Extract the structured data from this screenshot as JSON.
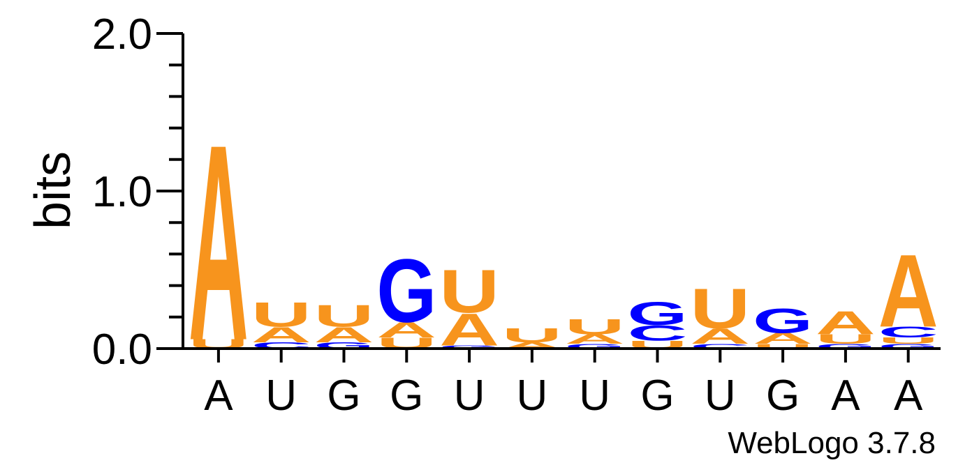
{
  "chart_data": {
    "type": "sequence-logo",
    "ylabel": "bits",
    "ylim": [
      0,
      2.0
    ],
    "y_major_ticks": [
      {
        "value": 0.0,
        "label": "0.0"
      },
      {
        "value": 1.0,
        "label": "1.0"
      },
      {
        "value": 2.0,
        "label": "2.0"
      }
    ],
    "y_minor_step": 0.2,
    "x_tick_labels": [
      "A",
      "U",
      "G",
      "G",
      "U",
      "U",
      "U",
      "G",
      "U",
      "G",
      "A",
      "A"
    ],
    "colors": {
      "A": "#F7941D",
      "U": "#F7941D",
      "G": "#0000FF",
      "C": "#0000FF"
    },
    "positions": [
      {
        "stack": [
          {
            "letter": "U",
            "bits": 0.06
          },
          {
            "letter": "A",
            "bits": 1.27
          }
        ]
      },
      {
        "stack": [
          {
            "letter": "C",
            "bits": 0.04
          },
          {
            "letter": "A",
            "bits": 0.1
          },
          {
            "letter": "U",
            "bits": 0.16
          }
        ]
      },
      {
        "stack": [
          {
            "letter": "G",
            "bits": 0.04
          },
          {
            "letter": "A",
            "bits": 0.1
          },
          {
            "letter": "U",
            "bits": 0.14
          }
        ]
      },
      {
        "stack": [
          {
            "letter": "U",
            "bits": 0.07
          },
          {
            "letter": "A",
            "bits": 0.1
          },
          {
            "letter": "G",
            "bits": 0.41
          }
        ]
      },
      {
        "stack": [
          {
            "letter": "G",
            "bits": 0.02
          },
          {
            "letter": "A",
            "bits": 0.21
          },
          {
            "letter": "U",
            "bits": 0.28
          }
        ]
      },
      {
        "stack": [
          {
            "letter": "A",
            "bits": 0.04
          },
          {
            "letter": "U",
            "bits": 0.09
          }
        ]
      },
      {
        "stack": [
          {
            "letter": "G",
            "bits": 0.03
          },
          {
            "letter": "A",
            "bits": 0.06
          },
          {
            "letter": "U",
            "bits": 0.1
          }
        ]
      },
      {
        "stack": [
          {
            "letter": "U",
            "bits": 0.05
          },
          {
            "letter": "C",
            "bits": 0.1
          },
          {
            "letter": "G",
            "bits": 0.15
          }
        ]
      },
      {
        "stack": [
          {
            "letter": "C",
            "bits": 0.03
          },
          {
            "letter": "A",
            "bits": 0.1
          },
          {
            "letter": "U",
            "bits": 0.26
          }
        ]
      },
      {
        "stack": [
          {
            "letter": "U",
            "bits": 0.03
          },
          {
            "letter": "A",
            "bits": 0.07
          },
          {
            "letter": "G",
            "bits": 0.16
          }
        ]
      },
      {
        "stack": [
          {
            "letter": "G",
            "bits": 0.03
          },
          {
            "letter": "U",
            "bits": 0.06
          },
          {
            "letter": "A",
            "bits": 0.15
          }
        ]
      },
      {
        "stack": [
          {
            "letter": "G",
            "bits": 0.03
          },
          {
            "letter": "U",
            "bits": 0.04
          },
          {
            "letter": "C",
            "bits": 0.07
          },
          {
            "letter": "A",
            "bits": 0.47
          }
        ]
      }
    ]
  },
  "footer": {
    "credit": "WebLogo 3.7.8"
  }
}
